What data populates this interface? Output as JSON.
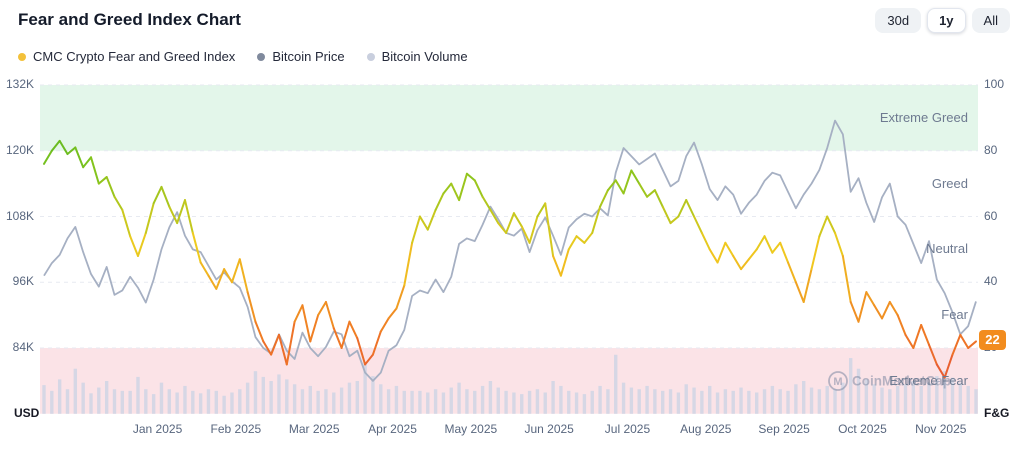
{
  "header": {
    "title": "Fear and Greed Index Chart",
    "range_buttons": [
      {
        "label": "30d",
        "active": false
      },
      {
        "label": "1y",
        "active": true
      },
      {
        "label": "All",
        "active": false
      }
    ]
  },
  "legend": [
    {
      "label": "CMC Crypto Fear and Greed Index",
      "color": "#F3C13A"
    },
    {
      "label": "Bitcoin Price",
      "color": "#808A9D"
    },
    {
      "label": "Bitcoin Volume",
      "color": "#C9CFDE"
    }
  ],
  "axes": {
    "left_title": "USD",
    "left_ticks": [
      "132K",
      "120K",
      "108K",
      "96K",
      "84K"
    ],
    "right_title": "F&G",
    "right_ticks": [
      "100",
      "80",
      "60",
      "40",
      "20"
    ],
    "x_ticks": [
      "Jan 2025",
      "Feb 2025",
      "Mar 2025",
      "Apr 2025",
      "May 2025",
      "Jun 2025",
      "Jul 2025",
      "Aug 2025",
      "Sep 2025",
      "Oct 2025",
      "Nov 2025"
    ]
  },
  "current_badge": {
    "value": "22",
    "color": "#F28C1E"
  },
  "watermark": {
    "text": "CoinMarketCap"
  },
  "chart_data": {
    "type": "line",
    "x_unit": "approx. 3-day samples, Dec 2024 - Nov 2025",
    "x_axis_labels": [
      "Jan 2025",
      "Feb 2025",
      "Mar 2025",
      "Apr 2025",
      "May 2025",
      "Jun 2025",
      "Jul 2025",
      "Aug 2025",
      "Sep 2025",
      "Oct 2025",
      "Nov 2025"
    ],
    "y_left": {
      "label": "USD",
      "ticks": [
        132000,
        120000,
        108000,
        96000,
        84000
      ]
    },
    "y_right": {
      "label": "F&G",
      "ticks": [
        100,
        80,
        60,
        40,
        20
      ],
      "range": [
        0,
        100
      ]
    },
    "grid": true,
    "legend_position": "top-left",
    "current_value": 22,
    "zones": [
      {
        "label": "Extreme Greed",
        "range": [
          80,
          100
        ],
        "fill": "#E3F6EA"
      },
      {
        "label": "Greed",
        "range": [
          60,
          80
        ]
      },
      {
        "label": "Neutral",
        "range": [
          40,
          60
        ]
      },
      {
        "label": "Fear",
        "range": [
          20,
          40
        ]
      },
      {
        "label": "Extreme Fear",
        "range": [
          0,
          20
        ],
        "fill": "#FBE3E7"
      }
    ],
    "series": [
      {
        "name": "CMC Crypto Fear and Greed Index",
        "axis": "right",
        "type": "line",
        "color_stops": [
          [
            0,
            "#DF3A3F"
          ],
          [
            25,
            "#F07C24"
          ],
          [
            50,
            "#F0CA1F"
          ],
          [
            75,
            "#7FC41D"
          ],
          [
            100,
            "#2DA42E"
          ]
        ],
        "values": [
          76,
          80,
          83,
          79,
          81,
          75,
          78,
          70,
          72,
          66,
          62,
          54,
          48,
          55,
          64,
          69,
          63,
          58,
          65,
          55,
          46,
          42,
          38,
          44,
          40,
          47,
          37,
          28,
          22,
          18,
          24,
          15,
          28,
          33,
          22,
          30,
          34,
          26,
          20,
          28,
          23,
          15,
          18,
          25,
          29,
          32,
          39,
          52,
          60,
          56,
          62,
          67,
          70,
          65,
          73,
          71,
          66,
          62,
          58,
          55,
          61,
          57,
          52,
          60,
          64,
          48,
          42,
          50,
          54,
          52,
          55,
          63,
          68,
          71,
          67,
          74,
          70,
          66,
          68,
          63,
          58,
          60,
          65,
          60,
          55,
          50,
          46,
          52,
          48,
          44,
          47,
          50,
          54,
          49,
          52,
          46,
          40,
          34,
          44,
          54,
          60,
          55,
          48,
          34,
          28,
          37,
          33,
          29,
          34,
          30,
          24,
          20,
          27,
          21,
          15,
          11,
          18,
          24,
          20,
          22
        ]
      },
      {
        "name": "Bitcoin Price",
        "axis": "left",
        "type": "line",
        "unit": "USD thousands",
        "color": "#A6B0C3",
        "values": [
          97.2,
          99.5,
          101.0,
          104.0,
          106.1,
          101.5,
          97.5,
          95.2,
          98.8,
          93.7,
          94.5,
          97.0,
          95.0,
          92.3,
          96.5,
          102.0,
          106.0,
          108.8,
          104.5,
          102.0,
          101.5,
          99.0,
          96.5,
          97.8,
          96.2,
          95.0,
          91.5,
          86.0,
          84.0,
          83.0,
          86.5,
          83.5,
          82.0,
          86.8,
          84.0,
          82.5,
          84.2,
          87.0,
          86.5,
          82.5,
          83.5,
          79.5,
          78.0,
          79.5,
          83.5,
          84.5,
          87.3,
          93.5,
          94.5,
          94.0,
          96.5,
          94.2,
          97.0,
          103.0,
          104.0,
          103.5,
          106.5,
          109.8,
          107.5,
          105.0,
          104.5,
          105.8,
          101.5,
          105.5,
          107.8,
          104.5,
          101.0,
          106.0,
          107.5,
          108.5,
          108.0,
          109.5,
          108.2,
          116.0,
          120.5,
          119.0,
          117.5,
          118.5,
          119.5,
          116.5,
          113.5,
          114.5,
          119.0,
          121.5,
          117.5,
          113.0,
          111.0,
          113.5,
          112.0,
          108.5,
          110.5,
          112.0,
          114.5,
          116.0,
          115.5,
          112.5,
          109.5,
          112.0,
          114.0,
          116.5,
          120.5,
          125.5,
          123.0,
          112.5,
          115.0,
          110.5,
          107.0,
          111.5,
          114.0,
          108.0,
          106.5,
          103.0,
          99.5,
          103.5,
          96.5,
          94.0,
          90.5,
          86.5,
          88.0,
          92.5
        ]
      },
      {
        "name": "Bitcoin Volume",
        "axis": "hidden",
        "type": "bar",
        "unit": "relative (0-100)",
        "color": "#D2D6E5",
        "values": [
          35,
          28,
          42,
          30,
          55,
          38,
          25,
          32,
          40,
          30,
          28,
          28,
          45,
          30,
          24,
          38,
          30,
          26,
          34,
          28,
          25,
          30,
          28,
          22,
          26,
          30,
          38,
          52,
          45,
          40,
          48,
          42,
          36,
          30,
          34,
          28,
          30,
          26,
          32,
          38,
          40,
          62,
          46,
          36,
          30,
          34,
          28,
          28,
          28,
          26,
          30,
          26,
          32,
          38,
          30,
          28,
          34,
          40,
          32,
          28,
          26,
          24,
          28,
          30,
          26,
          40,
          34,
          28,
          26,
          24,
          28,
          34,
          30,
          72,
          38,
          32,
          30,
          34,
          30,
          28,
          30,
          26,
          36,
          32,
          28,
          34,
          26,
          30,
          28,
          32,
          28,
          26,
          30,
          34,
          30,
          28,
          36,
          40,
          32,
          30,
          34,
          30,
          38,
          68,
          55,
          42,
          36,
          32,
          30,
          34,
          36,
          40,
          34,
          38,
          46,
          52,
          44,
          38,
          34,
          30
        ]
      }
    ]
  }
}
